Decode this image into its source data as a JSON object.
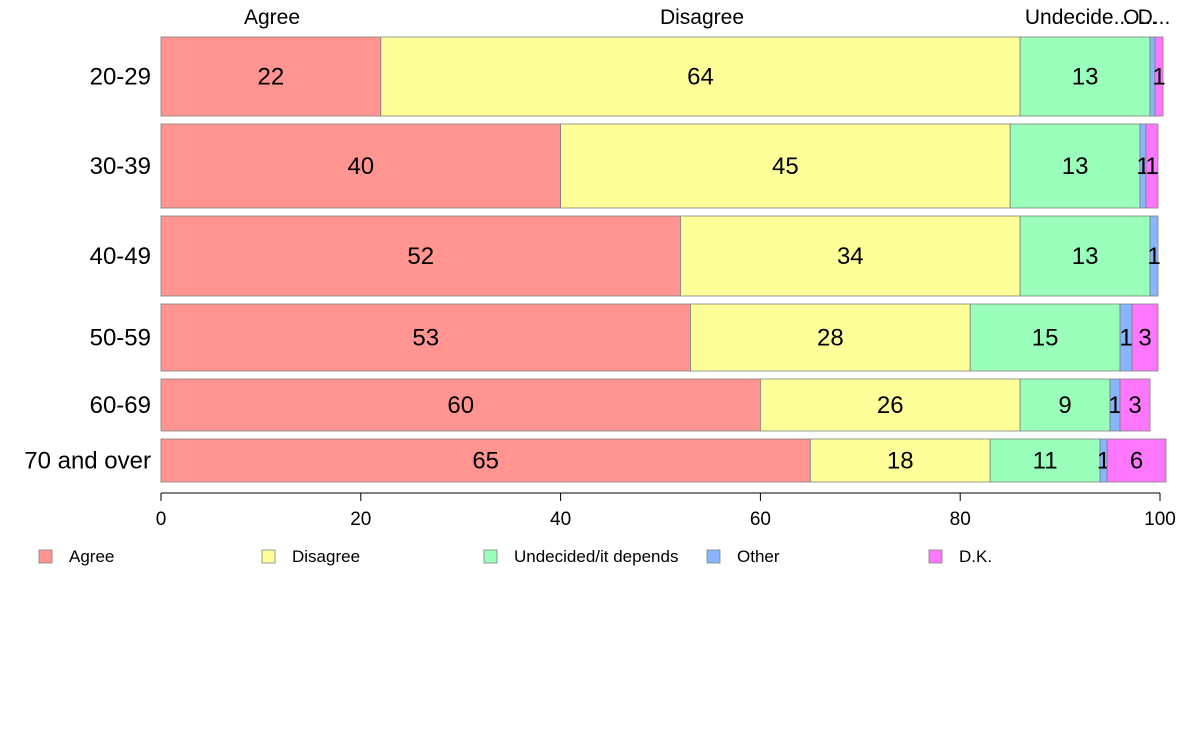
{
  "chart_data": {
    "type": "bar",
    "orientation": "horizontal",
    "stacked": true,
    "categories": [
      "20-29",
      "30-39",
      "40-49",
      "50-59",
      "60-69",
      "70 and over"
    ],
    "series": [
      {
        "name": "Agree",
        "color": "#ff9491",
        "values": [
          22,
          40,
          52,
          53,
          60,
          65
        ],
        "labels": [
          "22",
          "40",
          "52",
          "53",
          "60",
          "65"
        ]
      },
      {
        "name": "Disagree",
        "color": "#ffff99",
        "values": [
          64,
          45,
          34,
          28,
          26,
          18
        ],
        "labels": [
          "64",
          "45",
          "34",
          "28",
          "26",
          "18"
        ]
      },
      {
        "name": "Undecided/it depends",
        "color": "#99ffbb",
        "values": [
          13,
          13,
          13,
          15,
          9,
          11
        ],
        "labels": [
          "13",
          "13",
          "13",
          "15",
          "9",
          "11"
        ]
      },
      {
        "name": "Other",
        "color": "#88b5ff",
        "values": [
          0.5,
          0.6,
          0.8,
          1.2,
          1.0,
          0.7
        ],
        "labels": [
          "",
          "1",
          "1",
          "1",
          "1",
          "1"
        ]
      },
      {
        "name": "D.K.",
        "color": "#ff77ff",
        "values": [
          0.8,
          1.2,
          0.0,
          2.6,
          3.0,
          5.9
        ],
        "labels": [
          "1",
          "1",
          "",
          "3",
          "3",
          "6"
        ]
      }
    ],
    "column_labels": [
      "Agree",
      "Disagree",
      "Undecide...",
      "O...",
      "D..."
    ],
    "x_ticks": [
      "0",
      "20",
      "40",
      "60",
      "80",
      "100"
    ],
    "xlim": [
      0,
      100
    ],
    "grid": false,
    "legend_position": "bottom",
    "legend": [
      "Agree",
      "Disagree",
      "Undecided/it depends",
      "Other",
      "D.K."
    ]
  }
}
